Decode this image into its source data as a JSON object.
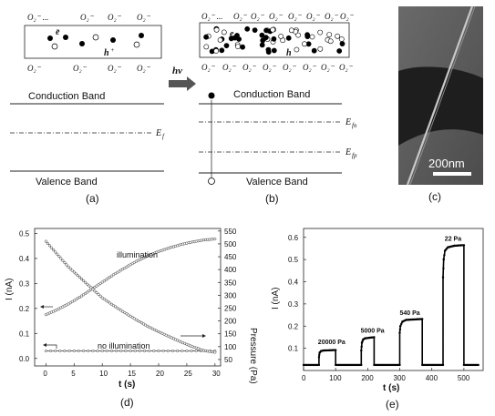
{
  "panel_a": {
    "caption": "(a)",
    "conduction_band": "Conduction Band",
    "valence_band": "Valence Band",
    "fermi_level": "E",
    "fermi_sub": "f",
    "electron": "e",
    "hole": "h",
    "oxygen_top": [
      "O₂⁻ ...",
      "O₂⁻",
      "O₂⁻",
      "O₂⁻"
    ],
    "oxygen_bottom": [
      "O₂⁻",
      "O₂⁻",
      "O₂⁻",
      "O₂⁻"
    ]
  },
  "arrow_label": "hν",
  "panel_b": {
    "caption": "(b)",
    "conduction_band": "Conduction Band",
    "valence_band": "Valence Band",
    "fermi_n": "E",
    "fermi_n_sub": "fn",
    "fermi_p": "E",
    "fermi_p_sub": "fp",
    "electron": "e",
    "hole": "h",
    "oxygen_top": [
      "O₂⁻ ...",
      "O₂⁻",
      "O₂⁻",
      "O₂⁻",
      "O₂⁻",
      "O₂⁻",
      "O₂⁻",
      "O₂⁻"
    ],
    "oxygen_bottom": [
      "O₂⁻",
      "O₂⁻",
      "O₂⁻",
      "O₂⁻",
      "O₂⁻",
      "O₂⁻",
      "O₂⁻",
      "O₂⁻"
    ]
  },
  "panel_c": {
    "caption": "(c)",
    "scale_bar": "200nm"
  },
  "chart_data": [
    {
      "panel": "(d)",
      "type": "line",
      "xlabel": "t (s)",
      "ylabel": "I (nA)",
      "y2label": "Pressure (Pa)",
      "xlim": [
        -2,
        31
      ],
      "ylim": [
        -0.03,
        0.52
      ],
      "y2lim": [
        25,
        560
      ],
      "xticks": [
        0,
        5,
        10,
        15,
        20,
        25,
        30
      ],
      "yticks": [
        0.0,
        0.1,
        0.2,
        0.3,
        0.4,
        0.5
      ],
      "y2ticks": [
        50,
        100,
        150,
        200,
        250,
        300,
        350,
        400,
        450,
        500,
        550
      ],
      "annotations": [
        "illumination",
        "no illumination"
      ],
      "series": [
        {
          "axis": "left",
          "x": [
            0,
            2,
            4,
            6,
            8,
            10,
            12,
            14,
            16,
            18,
            20,
            22,
            24,
            26,
            28,
            30
          ],
          "values": [
            0.175,
            0.195,
            0.218,
            0.245,
            0.275,
            0.305,
            0.335,
            0.362,
            0.388,
            0.41,
            0.428,
            0.443,
            0.456,
            0.466,
            0.474,
            0.478
          ]
        },
        {
          "axis": "left",
          "x": [
            0,
            5,
            10,
            15,
            20,
            25,
            30
          ],
          "values": [
            0.03,
            0.03,
            0.03,
            0.03,
            0.03,
            0.03,
            0.03
          ]
        },
        {
          "axis": "right",
          "x": [
            0,
            2,
            4,
            6,
            8,
            10,
            12,
            14,
            16,
            18,
            20,
            22,
            24,
            26,
            28,
            30
          ],
          "values": [
            510,
            460,
            410,
            370,
            330,
            290,
            260,
            232,
            205,
            180,
            158,
            138,
            118,
            100,
            85,
            78
          ]
        }
      ]
    },
    {
      "panel": "(e)",
      "type": "line",
      "xlabel": "t (s)",
      "ylabel": "I (nA)",
      "xlim": [
        0,
        560
      ],
      "ylim": [
        0,
        0.64
      ],
      "xticks": [
        0,
        100,
        200,
        300,
        400,
        500
      ],
      "yticks": [
        0.1,
        0.2,
        0.3,
        0.4,
        0.5,
        0.6
      ],
      "series": [
        {
          "x": [
            0,
            48,
            48,
            50,
            55,
            62,
            100,
            100,
            180,
            180,
            182,
            186,
            192,
            220,
            220,
            300,
            300,
            302,
            308,
            320,
            370,
            370,
            435,
            435,
            437,
            441,
            450,
            470,
            500,
            500,
            545
          ],
          "values": [
            0.025,
            0.025,
            0.06,
            0.08,
            0.088,
            0.09,
            0.092,
            0.025,
            0.025,
            0.09,
            0.125,
            0.14,
            0.145,
            0.15,
            0.025,
            0.025,
            0.17,
            0.2,
            0.22,
            0.228,
            0.232,
            0.025,
            0.025,
            0.42,
            0.5,
            0.54,
            0.555,
            0.562,
            0.565,
            0.025,
            0.025
          ]
        }
      ],
      "annotations": [
        "20000 Pa",
        "5000 Pa",
        "540 Pa",
        "22 Pa"
      ]
    }
  ]
}
